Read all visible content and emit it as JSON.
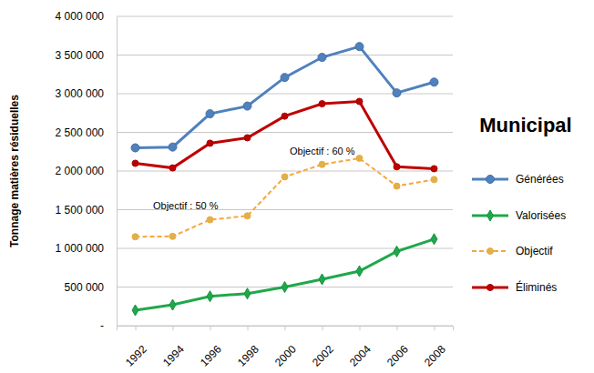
{
  "chart_data": {
    "type": "line",
    "title": "Municipal",
    "y_label": "Tonnage matières résiduelles",
    "annotations": [
      "Objectif : 50 %",
      "Objectif : 60 %"
    ],
    "categories": [
      "1992",
      "1994",
      "1996",
      "1998",
      "2000",
      "2002",
      "2004",
      "2006",
      "2008"
    ],
    "series": [
      {
        "name": "Générées",
        "color": "#4f81bd",
        "marker": "circle",
        "line_style": "solid",
        "values": [
          2300000,
          2310000,
          2740000,
          2840000,
          3210000,
          3470000,
          3610000,
          3010000,
          3150000
        ]
      },
      {
        "name": "Valorisées",
        "color": "#1fa84b",
        "marker": "diamond",
        "line_style": "solid",
        "values": [
          200000,
          270000,
          380000,
          415000,
          500000,
          600000,
          705000,
          960000,
          1120000
        ]
      },
      {
        "name": "Objectif",
        "color": "#f6a73b",
        "marker": "circle",
        "line_style": "dashed",
        "values": [
          1150000,
          1155000,
          1370000,
          1420000,
          1925000,
          2085000,
          2165000,
          1805000,
          1890000
        ]
      },
      {
        "name": "Éliminés",
        "color": "#c00000",
        "marker": "circle",
        "line_style": "solid",
        "values": [
          2100000,
          2040000,
          2360000,
          2430000,
          2710000,
          2870000,
          2900000,
          2055000,
          2030000
        ]
      }
    ],
    "ylim": [
      0,
      4000000
    ],
    "yticks": [
      {
        "value": 0,
        "label": "-"
      },
      {
        "value": 500000,
        "label": "500 000"
      },
      {
        "value": 1000000,
        "label": "1 000 000"
      },
      {
        "value": 1500000,
        "label": "1 500 000"
      },
      {
        "value": 2000000,
        "label": "2 000 000"
      },
      {
        "value": 2500000,
        "label": "2 500 000"
      },
      {
        "value": 3000000,
        "label": "3 000 000"
      },
      {
        "value": 3500000,
        "label": "3 500 000"
      },
      {
        "value": 4000000,
        "label": "4 000 000"
      }
    ],
    "grid": true,
    "legend": "right"
  }
}
